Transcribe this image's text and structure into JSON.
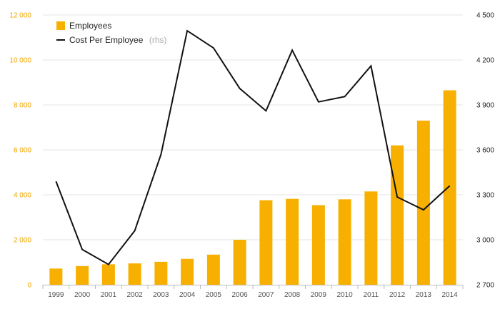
{
  "chart_data": {
    "type": "bar",
    "categories": [
      "1999",
      "2000",
      "2001",
      "2002",
      "2003",
      "2004",
      "2005",
      "2006",
      "2007",
      "2008",
      "2009",
      "2010",
      "2011",
      "2012",
      "2013",
      "2014"
    ],
    "series": [
      {
        "name": "Employees",
        "type": "bar",
        "axis": "left",
        "color": "#f8b000",
        "values": [
          720,
          830,
          910,
          950,
          1020,
          1150,
          1340,
          2000,
          3760,
          3820,
          3540,
          3800,
          4150,
          6200,
          7300,
          8650
        ]
      },
      {
        "name": "Cost Per Employee",
        "name_suffix": "(rhs)",
        "type": "line",
        "axis": "right",
        "color": "#111111",
        "values": [
          3390,
          2935,
          2835,
          3060,
          3570,
          4395,
          4280,
          4010,
          3860,
          4265,
          3920,
          3955,
          4160,
          3285,
          3200,
          3360
        ]
      }
    ],
    "y_left": {
      "lim": [
        0,
        12000
      ],
      "ticks": [
        "0",
        "2 000",
        "4 000",
        "6 000",
        "8 000",
        "10 000",
        "12 000"
      ],
      "color": "#f0a500"
    },
    "y_right": {
      "lim": [
        2700,
        4500
      ],
      "ticks": [
        "2 700",
        "3 000",
        "3 300",
        "3 600",
        "3 900",
        "4 200",
        "4 500"
      ],
      "color": "#222222"
    },
    "grid": true,
    "legend_position": "top-left"
  }
}
